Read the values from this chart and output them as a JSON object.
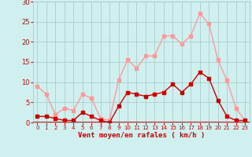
{
  "hours": [
    0,
    1,
    2,
    3,
    4,
    5,
    6,
    7,
    8,
    9,
    10,
    11,
    12,
    13,
    14,
    15,
    16,
    17,
    18,
    19,
    20,
    21,
    22,
    23
  ],
  "vent_moyen": [
    1.5,
    1.5,
    1.0,
    0.5,
    0.5,
    2.5,
    1.5,
    0.5,
    0.0,
    4.0,
    7.5,
    7.0,
    6.5,
    7.0,
    7.5,
    9.5,
    7.5,
    9.5,
    12.5,
    11.0,
    5.5,
    1.5,
    0.5,
    0.5
  ],
  "rafales": [
    9.0,
    7.0,
    2.0,
    3.5,
    3.0,
    7.0,
    6.0,
    1.0,
    0.5,
    10.5,
    15.5,
    13.5,
    16.5,
    16.5,
    21.5,
    21.5,
    19.5,
    21.5,
    27.0,
    24.5,
    15.5,
    10.5,
    3.5,
    0.5
  ],
  "vent_moyen_color": "#cc0000",
  "rafales_color": "#ff9999",
  "bg_color": "#cff0ee",
  "grid_color": "#aacccc",
  "xlabel": "Vent moyen/en rafales ( km/h )",
  "xlabel_color": "#cc0000",
  "tick_color": "#cc0000",
  "ylim": [
    0,
    30
  ],
  "yticks": [
    0,
    5,
    10,
    15,
    20,
    25,
    30
  ],
  "marker_size": 2.5,
  "line_width": 1.0
}
